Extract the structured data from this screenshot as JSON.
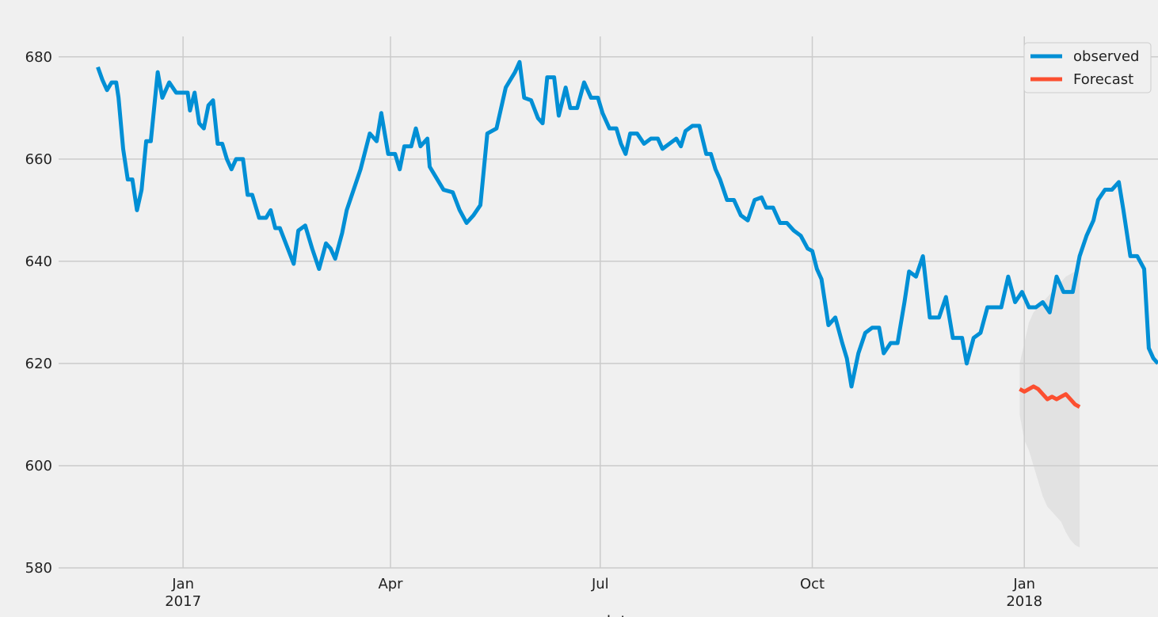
{
  "chart_data": {
    "type": "line",
    "xlabel": "date",
    "ylabel": "",
    "title": "",
    "xlim": [
      "2016-11-08",
      "2018-02-28"
    ],
    "ylim": [
      580,
      684
    ],
    "grid": true,
    "legend_placement": "top-right",
    "x_ticks": [
      {
        "date": "2017-01-01",
        "label": "Jan",
        "sublabel": "2017"
      },
      {
        "date": "2017-04-01",
        "label": "Apr",
        "sublabel": ""
      },
      {
        "date": "2017-07-01",
        "label": "Jul",
        "sublabel": ""
      },
      {
        "date": "2017-10-01",
        "label": "Oct",
        "sublabel": ""
      },
      {
        "date": "2018-01-01",
        "label": "Jan",
        "sublabel": "2018"
      }
    ],
    "y_ticks": [
      580,
      600,
      620,
      640,
      660,
      680
    ],
    "series": [
      {
        "name": "observed",
        "color": "#008fd5",
        "points": [
          [
            "2016-11-25",
            678
          ],
          [
            "2016-11-27",
            675.5
          ],
          [
            "2016-11-29",
            673.5
          ],
          [
            "2016-12-01",
            675
          ],
          [
            "2016-12-03",
            675
          ],
          [
            "2016-12-04",
            672
          ],
          [
            "2016-12-06",
            662
          ],
          [
            "2016-12-08",
            656
          ],
          [
            "2016-12-10",
            656
          ],
          [
            "2016-12-12",
            650
          ],
          [
            "2016-12-14",
            654
          ],
          [
            "2016-12-16",
            663.5
          ],
          [
            "2016-12-18",
            663.5
          ],
          [
            "2016-12-21",
            677
          ],
          [
            "2016-12-23",
            672
          ],
          [
            "2016-12-26",
            675
          ],
          [
            "2016-12-29",
            673
          ],
          [
            "2017-01-01",
            673
          ],
          [
            "2017-01-03",
            673
          ],
          [
            "2017-01-04",
            669.5
          ],
          [
            "2017-01-06",
            673
          ],
          [
            "2017-01-08",
            667
          ],
          [
            "2017-01-10",
            666
          ],
          [
            "2017-01-12",
            670.5
          ],
          [
            "2017-01-14",
            671.5
          ],
          [
            "2017-01-16",
            663
          ],
          [
            "2017-01-18",
            663
          ],
          [
            "2017-01-20",
            660
          ],
          [
            "2017-01-22",
            658
          ],
          [
            "2017-01-24",
            660
          ],
          [
            "2017-01-27",
            660
          ],
          [
            "2017-01-29",
            653
          ],
          [
            "2017-01-31",
            653
          ],
          [
            "2017-02-03",
            648.5
          ],
          [
            "2017-02-06",
            648.5
          ],
          [
            "2017-02-08",
            650
          ],
          [
            "2017-02-10",
            646.5
          ],
          [
            "2017-02-12",
            646.5
          ],
          [
            "2017-02-15",
            643
          ],
          [
            "2017-02-18",
            639.5
          ],
          [
            "2017-02-20",
            646
          ],
          [
            "2017-02-23",
            647
          ],
          [
            "2017-02-26",
            642.5
          ],
          [
            "2017-03-01",
            638.5
          ],
          [
            "2017-03-04",
            643.5
          ],
          [
            "2017-03-06",
            642.5
          ],
          [
            "2017-03-08",
            640.5
          ],
          [
            "2017-03-11",
            645.5
          ],
          [
            "2017-03-13",
            650
          ],
          [
            "2017-03-16",
            654
          ],
          [
            "2017-03-19",
            658
          ],
          [
            "2017-03-23",
            665
          ],
          [
            "2017-03-26",
            663.5
          ],
          [
            "2017-03-28",
            669
          ],
          [
            "2017-03-31",
            661
          ],
          [
            "2017-04-03",
            661
          ],
          [
            "2017-04-05",
            658
          ],
          [
            "2017-04-07",
            662.5
          ],
          [
            "2017-04-10",
            662.5
          ],
          [
            "2017-04-12",
            666
          ],
          [
            "2017-04-14",
            662.5
          ],
          [
            "2017-04-17",
            664
          ],
          [
            "2017-04-18",
            658.5
          ],
          [
            "2017-04-20",
            657
          ],
          [
            "2017-04-24",
            654
          ],
          [
            "2017-04-28",
            653.5
          ],
          [
            "2017-05-01",
            650
          ],
          [
            "2017-05-04",
            647.5
          ],
          [
            "2017-05-07",
            649
          ],
          [
            "2017-05-10",
            651
          ],
          [
            "2017-05-13",
            665
          ],
          [
            "2017-05-17",
            666
          ],
          [
            "2017-05-21",
            674
          ],
          [
            "2017-05-25",
            677
          ],
          [
            "2017-05-27",
            679
          ],
          [
            "2017-05-29",
            672
          ],
          [
            "2017-06-01",
            671.5
          ],
          [
            "2017-06-04",
            668
          ],
          [
            "2017-06-06",
            667
          ],
          [
            "2017-06-08",
            676
          ],
          [
            "2017-06-11",
            676
          ],
          [
            "2017-06-13",
            668.5
          ],
          [
            "2017-06-16",
            674
          ],
          [
            "2017-06-18",
            670
          ],
          [
            "2017-06-21",
            670
          ],
          [
            "2017-06-24",
            675
          ],
          [
            "2017-06-27",
            672
          ],
          [
            "2017-06-30",
            672
          ],
          [
            "2017-07-02",
            669
          ],
          [
            "2017-07-05",
            666
          ],
          [
            "2017-07-08",
            666
          ],
          [
            "2017-07-10",
            663
          ],
          [
            "2017-07-12",
            661
          ],
          [
            "2017-07-14",
            665
          ],
          [
            "2017-07-17",
            665
          ],
          [
            "2017-07-20",
            663
          ],
          [
            "2017-07-23",
            664
          ],
          [
            "2017-07-26",
            664
          ],
          [
            "2017-07-28",
            662
          ],
          [
            "2017-07-31",
            663
          ],
          [
            "2017-08-03",
            664
          ],
          [
            "2017-08-05",
            662.5
          ],
          [
            "2017-08-07",
            665.5
          ],
          [
            "2017-08-10",
            666.5
          ],
          [
            "2017-08-13",
            666.5
          ],
          [
            "2017-08-16",
            661
          ],
          [
            "2017-08-18",
            661
          ],
          [
            "2017-08-20",
            658
          ],
          [
            "2017-08-22",
            656
          ],
          [
            "2017-08-25",
            652
          ],
          [
            "2017-08-28",
            652
          ],
          [
            "2017-08-31",
            649
          ],
          [
            "2017-09-03",
            648
          ],
          [
            "2017-09-06",
            652
          ],
          [
            "2017-09-09",
            652.5
          ],
          [
            "2017-09-11",
            650.5
          ],
          [
            "2017-09-14",
            650.5
          ],
          [
            "2017-09-17",
            647.5
          ],
          [
            "2017-09-20",
            647.5
          ],
          [
            "2017-09-23",
            646
          ],
          [
            "2017-09-26",
            645
          ],
          [
            "2017-09-29",
            642.5
          ],
          [
            "2017-10-01",
            642
          ],
          [
            "2017-10-03",
            638.5
          ],
          [
            "2017-10-05",
            636.5
          ],
          [
            "2017-10-08",
            627.5
          ],
          [
            "2017-10-11",
            629
          ],
          [
            "2017-10-14",
            624
          ],
          [
            "2017-10-16",
            621
          ],
          [
            "2017-10-18",
            615.5
          ],
          [
            "2017-10-21",
            622
          ],
          [
            "2017-10-24",
            626
          ],
          [
            "2017-10-27",
            627
          ],
          [
            "2017-10-30",
            627
          ],
          [
            "2017-11-01",
            622
          ],
          [
            "2017-11-04",
            624
          ],
          [
            "2017-11-07",
            624
          ],
          [
            "2017-11-10",
            632
          ],
          [
            "2017-11-12",
            638
          ],
          [
            "2017-11-15",
            637
          ],
          [
            "2017-11-18",
            641
          ],
          [
            "2017-11-21",
            629
          ],
          [
            "2017-11-25",
            629
          ],
          [
            "2017-11-28",
            633
          ],
          [
            "2017-12-01",
            625
          ],
          [
            "2017-12-05",
            625
          ],
          [
            "2017-12-07",
            620
          ],
          [
            "2017-12-10",
            625
          ],
          [
            "2017-12-13",
            626
          ],
          [
            "2017-12-16",
            631
          ],
          [
            "2017-12-19",
            631
          ],
          [
            "2017-12-22",
            631
          ],
          [
            "2017-12-25",
            637
          ],
          [
            "2017-12-28",
            632
          ],
          [
            "2017-12-31",
            634
          ],
          [
            "2018-01-03",
            631
          ],
          [
            "2018-01-06",
            631
          ],
          [
            "2018-01-09",
            632
          ],
          [
            "2018-01-12",
            630
          ],
          [
            "2018-01-15",
            637
          ],
          [
            "2018-01-18",
            634
          ],
          [
            "2018-01-22",
            634
          ],
          [
            "2018-01-25",
            641
          ],
          [
            "2018-01-28",
            645
          ],
          [
            "2018-01-31",
            648
          ],
          [
            "2018-02-02",
            652
          ],
          [
            "2018-02-05",
            654
          ],
          [
            "2018-02-08",
            654
          ],
          [
            "2018-02-11",
            655.5
          ],
          [
            "2018-02-13",
            650
          ],
          [
            "2018-02-16",
            641
          ],
          [
            "2018-02-19",
            641
          ],
          [
            "2018-02-22",
            638.5
          ],
          [
            "2018-02-24",
            623
          ],
          [
            "2018-02-26",
            621
          ],
          [
            "2018-02-28",
            620
          ]
        ]
      },
      {
        "name": "Forecast",
        "color": "#fc4f30",
        "points": [
          [
            "2017-12-30",
            615
          ],
          [
            "2018-01-01",
            614.5
          ],
          [
            "2018-01-03",
            615
          ],
          [
            "2018-01-05",
            615.5
          ],
          [
            "2018-01-07",
            615
          ],
          [
            "2018-01-09",
            614
          ],
          [
            "2018-01-11",
            613
          ],
          [
            "2018-01-13",
            613.5
          ],
          [
            "2018-01-15",
            613
          ],
          [
            "2018-01-17",
            613.5
          ],
          [
            "2018-01-19",
            614
          ],
          [
            "2018-01-21",
            613
          ],
          [
            "2018-01-23",
            612
          ],
          [
            "2018-01-25",
            611.5
          ]
        ]
      }
    ],
    "confidence_interval": {
      "color": "#cccccc",
      "points": [
        [
          "2017-12-30",
          620,
          610
        ],
        [
          "2018-01-01",
          624,
          605
        ],
        [
          "2018-01-03",
          628,
          603
        ],
        [
          "2018-01-05",
          630,
          600
        ],
        [
          "2018-01-07",
          631,
          597
        ],
        [
          "2018-01-09",
          632,
          594
        ],
        [
          "2018-01-11",
          633,
          592
        ],
        [
          "2018-01-13",
          634,
          591
        ],
        [
          "2018-01-15",
          635,
          590
        ],
        [
          "2018-01-17",
          636,
          589
        ],
        [
          "2018-01-19",
          637,
          587
        ],
        [
          "2018-01-21",
          637.5,
          585.5
        ],
        [
          "2018-01-23",
          638,
          584.5
        ],
        [
          "2018-01-25",
          639,
          584
        ]
      ]
    }
  }
}
